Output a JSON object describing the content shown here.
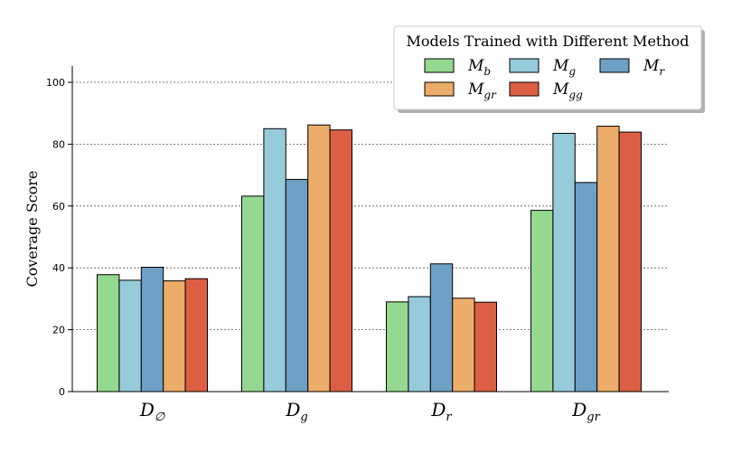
{
  "chart_data": {
    "type": "bar",
    "title": "",
    "xlabel": "",
    "ylabel": "Coverage Score",
    "ylim": [
      0,
      105
    ],
    "yticks": [
      0,
      20,
      40,
      60,
      80,
      100
    ],
    "grid": "horizontal dashed",
    "categories": [
      {
        "base": "D",
        "sub": "∅"
      },
      {
        "base": "D",
        "sub": "g"
      },
      {
        "base": "D",
        "sub": "r"
      },
      {
        "base": "D",
        "sub": "gr"
      }
    ],
    "legend": {
      "title": "Models Trained with Different Method",
      "placement": "top-right"
    },
    "series": [
      {
        "name": "M_b",
        "base": "M",
        "sub": "b",
        "color": "#95d88f",
        "values": [
          37.8,
          63.2,
          29.0,
          58.6
        ]
      },
      {
        "name": "M_g",
        "base": "M",
        "sub": "g",
        "color": "#96cbd9",
        "values": [
          36.0,
          85.0,
          30.7,
          83.5
        ]
      },
      {
        "name": "M_r",
        "base": "M",
        "sub": "r",
        "color": "#6e9fc5",
        "values": [
          40.2,
          68.6,
          41.3,
          67.6
        ]
      },
      {
        "name": "M_gr",
        "base": "M",
        "sub": "gr",
        "color": "#ebad69",
        "values": [
          35.8,
          86.2,
          30.2,
          85.8
        ]
      },
      {
        "name": "M_gg",
        "base": "M",
        "sub": "gg",
        "color": "#dc5f44",
        "values": [
          36.5,
          84.6,
          28.9,
          83.9
        ]
      }
    ]
  }
}
